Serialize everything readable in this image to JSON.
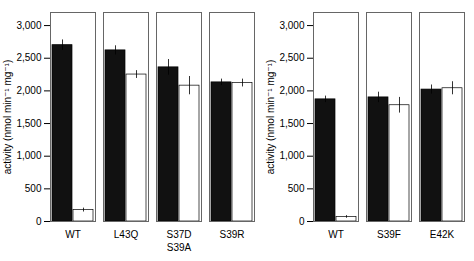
{
  "chart_data": [
    {
      "type": "bar",
      "categories": [
        "WT",
        "L43Q",
        "S37D",
        "S39R"
      ],
      "series": [
        {
          "color": "#111111",
          "values": [
            2700,
            2620,
            2360,
            2130
          ],
          "errors": [
            80,
            70,
            120,
            50
          ]
        },
        {
          "color": "#ffffff",
          "values": [
            175,
            2250,
            2080,
            2120
          ],
          "errors": [
            30,
            60,
            140,
            60
          ]
        }
      ],
      "ylabel": "activity (nmol min⁻¹ mg⁻¹)",
      "ylim": [
        0,
        3200
      ],
      "yticks": [
        0,
        500,
        1000,
        1500,
        2000,
        2500,
        3000
      ],
      "annotations": [
        {
          "text": "S39A",
          "x": "S37D"
        }
      ]
    },
    {
      "type": "bar",
      "categories": [
        "WT",
        "S39F",
        "E42K"
      ],
      "series": [
        {
          "color": "#111111",
          "values": [
            1870,
            1900,
            2020
          ],
          "errors": [
            50,
            80,
            70
          ]
        },
        {
          "color": "#ffffff",
          "values": [
            70,
            1780,
            2040
          ],
          "errors": [
            20,
            120,
            100
          ]
        }
      ],
      "ylabel": "activity (nmol min⁻¹ mg⁻¹)",
      "ylim": [
        0,
        3200
      ],
      "yticks": [
        0,
        500,
        1000,
        1500,
        2000,
        2500,
        3000
      ]
    }
  ]
}
